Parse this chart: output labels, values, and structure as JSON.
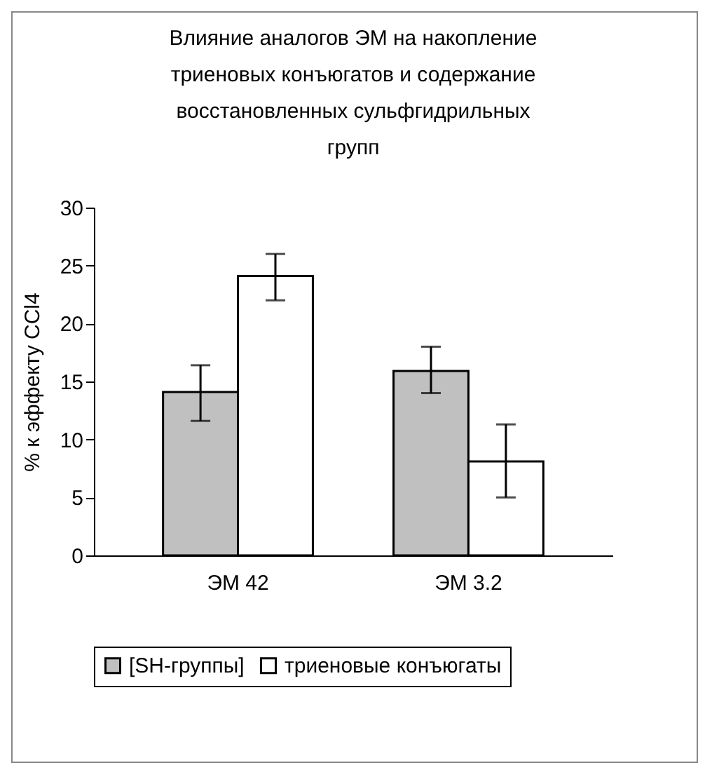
{
  "chart_data": {
    "type": "bar",
    "title": "Влияние аналогов ЭМ на накопление триеновых конъюгатов и содержание восстановленных сульфгидрильных групп",
    "ylabel": "% к эффекту CCl4",
    "categories": [
      "ЭМ 42",
      "ЭМ 3.2"
    ],
    "series": [
      {
        "name": "[SH-группы]",
        "color": "#c0c0c0",
        "values": [
          14.1,
          15.9
        ],
        "errors": [
          [
            11.6,
            16.4
          ],
          [
            14,
            18
          ]
        ]
      },
      {
        "name": "триеновые конъюгаты",
        "color": "#ffffff",
        "values": [
          24.1,
          8.1
        ],
        "errors": [
          [
            22,
            26
          ],
          [
            5,
            11.3
          ]
        ]
      }
    ],
    "ylim": [
      0,
      30
    ],
    "yticks": [
      0,
      5,
      10,
      15,
      20,
      25,
      30
    ],
    "grid": false,
    "legend": "bottom"
  }
}
